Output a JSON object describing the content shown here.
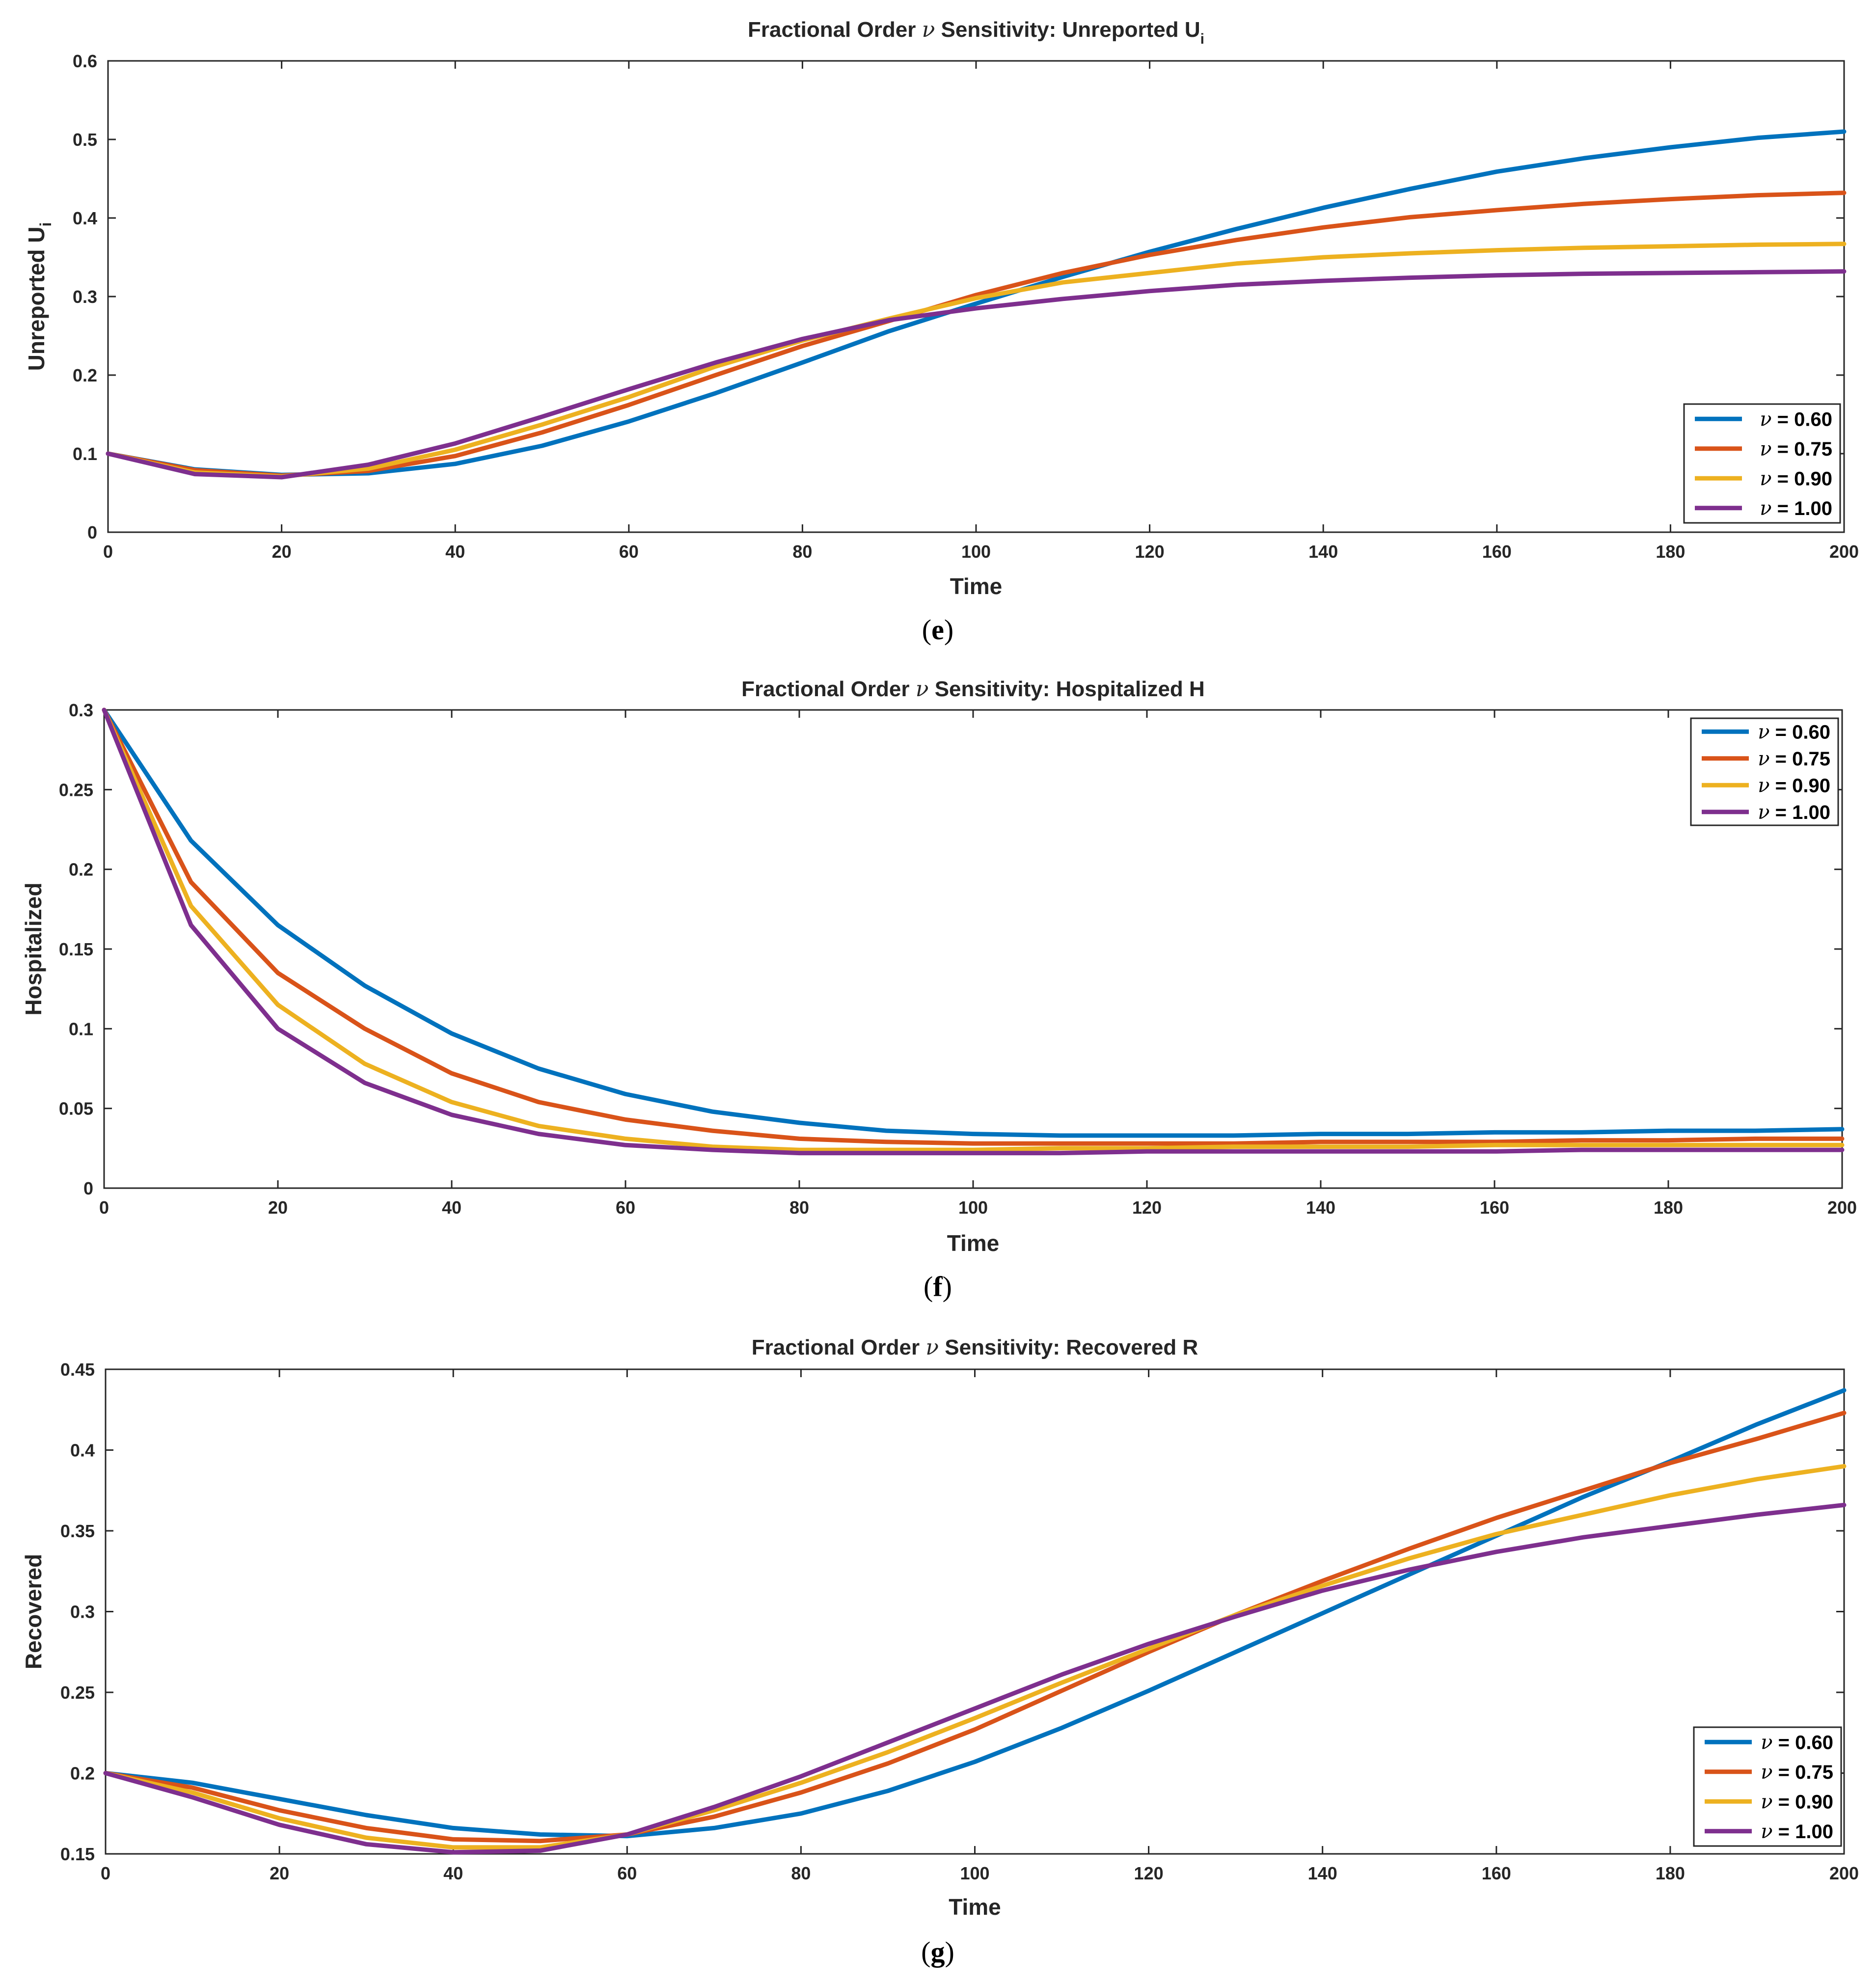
{
  "figure": {
    "legend_symbol": "ν",
    "legend_separator": " = "
  },
  "colors": {
    "series": [
      "#0072BD",
      "#D95319",
      "#EDB120",
      "#7E2F8E"
    ],
    "axes": "#262626",
    "background": "#ffffff"
  },
  "chart_data": [
    {
      "id": "e",
      "caption": {
        "open": "(",
        "letter": "e",
        "close": ")"
      },
      "type": "line",
      "title": {
        "main": "Fractional Order ",
        "symbol": "ν",
        "rest": " Sensitivity: Unreported U",
        "subscript": "i"
      },
      "xlabel": "Time",
      "ylabel": {
        "main": "Unreported U",
        "subscript": "i"
      },
      "xlim": [
        0,
        200
      ],
      "ylim": [
        0,
        0.6
      ],
      "xticks": [
        0,
        20,
        40,
        60,
        80,
        100,
        120,
        140,
        160,
        180,
        200
      ],
      "yticks": [
        0,
        0.1,
        0.2,
        0.3,
        0.4,
        0.5,
        0.6
      ],
      "ytick_labels": [
        "0",
        "0.1",
        "0.2",
        "0.3",
        "0.4",
        "0.5",
        "0.6"
      ],
      "grid": false,
      "legend_location": "bottom-right",
      "x": [
        0,
        10,
        20,
        30,
        40,
        50,
        60,
        70,
        80,
        90,
        100,
        110,
        120,
        130,
        140,
        150,
        160,
        170,
        180,
        190,
        200
      ],
      "series": [
        {
          "name": "0.60",
          "values": [
            0.1,
            0.08,
            0.073,
            0.075,
            0.087,
            0.11,
            0.141,
            0.177,
            0.216,
            0.256,
            0.291,
            0.325,
            0.357,
            0.386,
            0.413,
            0.437,
            0.459,
            0.476,
            0.49,
            0.502,
            0.51
          ]
        },
        {
          "name": "0.75",
          "values": [
            0.1,
            0.079,
            0.072,
            0.078,
            0.097,
            0.127,
            0.162,
            0.2,
            0.237,
            0.269,
            0.302,
            0.33,
            0.353,
            0.372,
            0.388,
            0.401,
            0.41,
            0.418,
            0.424,
            0.429,
            0.432
          ]
        },
        {
          "name": "0.90",
          "values": [
            0.1,
            0.076,
            0.071,
            0.081,
            0.105,
            0.137,
            0.172,
            0.211,
            0.244,
            0.272,
            0.298,
            0.318,
            0.33,
            0.342,
            0.35,
            0.355,
            0.359,
            0.362,
            0.364,
            0.366,
            0.367
          ]
        },
        {
          "name": "1.00",
          "values": [
            0.1,
            0.074,
            0.07,
            0.086,
            0.113,
            0.147,
            0.182,
            0.216,
            0.246,
            0.27,
            0.285,
            0.297,
            0.307,
            0.315,
            0.32,
            0.324,
            0.327,
            0.329,
            0.33,
            0.331,
            0.332
          ]
        }
      ]
    },
    {
      "id": "f",
      "caption": {
        "open": "(",
        "letter": "f",
        "close": ")"
      },
      "type": "line",
      "title": {
        "main": "Fractional Order ",
        "symbol": "ν",
        "rest": " Sensitivity: Hospitalized H",
        "subscript": ""
      },
      "xlabel": "Time",
      "ylabel": {
        "main": "Hospitalized",
        "subscript": ""
      },
      "xlim": [
        0,
        200
      ],
      "ylim": [
        0,
        0.3
      ],
      "xticks": [
        0,
        20,
        40,
        60,
        80,
        100,
        120,
        140,
        160,
        180,
        200
      ],
      "yticks": [
        0,
        0.05,
        0.1,
        0.15,
        0.2,
        0.25,
        0.3
      ],
      "ytick_labels": [
        "0",
        "0.05",
        "0.1",
        "0.15",
        "0.2",
        "0.25",
        "0.3"
      ],
      "grid": false,
      "legend_location": "top-right",
      "x": [
        0,
        10,
        20,
        30,
        40,
        50,
        60,
        70,
        80,
        90,
        100,
        110,
        120,
        130,
        140,
        150,
        160,
        170,
        180,
        190,
        200
      ],
      "series": [
        {
          "name": "0.60",
          "values": [
            0.3,
            0.218,
            0.165,
            0.127,
            0.097,
            0.075,
            0.059,
            0.048,
            0.041,
            0.036,
            0.034,
            0.033,
            0.033,
            0.033,
            0.034,
            0.034,
            0.035,
            0.035,
            0.036,
            0.036,
            0.037
          ]
        },
        {
          "name": "0.75",
          "values": [
            0.3,
            0.192,
            0.135,
            0.1,
            0.072,
            0.054,
            0.043,
            0.036,
            0.031,
            0.029,
            0.028,
            0.028,
            0.028,
            0.028,
            0.029,
            0.029,
            0.029,
            0.03,
            0.03,
            0.031,
            0.031
          ]
        },
        {
          "name": "0.90",
          "values": [
            0.3,
            0.177,
            0.115,
            0.078,
            0.054,
            0.039,
            0.031,
            0.026,
            0.024,
            0.024,
            0.024,
            0.025,
            0.025,
            0.026,
            0.026,
            0.026,
            0.027,
            0.027,
            0.027,
            0.027,
            0.027
          ]
        },
        {
          "name": "1.00",
          "values": [
            0.3,
            0.165,
            0.1,
            0.066,
            0.046,
            0.034,
            0.027,
            0.024,
            0.022,
            0.022,
            0.022,
            0.022,
            0.023,
            0.023,
            0.023,
            0.023,
            0.023,
            0.024,
            0.024,
            0.024,
            0.024
          ]
        }
      ]
    },
    {
      "id": "g",
      "caption": {
        "open": "(",
        "letter": "g",
        "close": ")"
      },
      "type": "line",
      "title": {
        "main": "Fractional Order ",
        "symbol": "ν",
        "rest": " Sensitivity: Recovered R",
        "subscript": ""
      },
      "xlabel": "Time",
      "ylabel": {
        "main": "Recovered",
        "subscript": ""
      },
      "xlim": [
        0,
        200
      ],
      "ylim": [
        0.15,
        0.45
      ],
      "xticks": [
        0,
        20,
        40,
        60,
        80,
        100,
        120,
        140,
        160,
        180,
        200
      ],
      "yticks": [
        0.15,
        0.2,
        0.25,
        0.3,
        0.35,
        0.4,
        0.45
      ],
      "ytick_labels": [
        "0.15",
        "0.2",
        "0.25",
        "0.3",
        "0.35",
        "0.4",
        "0.45"
      ],
      "grid": false,
      "legend_location": "bottom-right",
      "x": [
        0,
        10,
        20,
        30,
        40,
        50,
        60,
        70,
        80,
        90,
        100,
        110,
        120,
        130,
        140,
        150,
        160,
        170,
        180,
        190,
        200
      ],
      "series": [
        {
          "name": "0.60",
          "values": [
            0.2,
            0.194,
            0.184,
            0.174,
            0.166,
            0.162,
            0.161,
            0.166,
            0.175,
            0.189,
            0.207,
            0.228,
            0.251,
            0.275,
            0.299,
            0.323,
            0.347,
            0.371,
            0.393,
            0.416,
            0.437
          ]
        },
        {
          "name": "0.75",
          "values": [
            0.2,
            0.191,
            0.177,
            0.166,
            0.159,
            0.158,
            0.162,
            0.173,
            0.188,
            0.206,
            0.227,
            0.251,
            0.275,
            0.298,
            0.319,
            0.339,
            0.358,
            0.375,
            0.392,
            0.407,
            0.423
          ]
        },
        {
          "name": "0.90",
          "values": [
            0.2,
            0.188,
            0.172,
            0.16,
            0.154,
            0.154,
            0.162,
            0.177,
            0.194,
            0.213,
            0.234,
            0.256,
            0.277,
            0.298,
            0.316,
            0.333,
            0.348,
            0.36,
            0.372,
            0.382,
            0.39
          ]
        },
        {
          "name": "1.00",
          "values": [
            0.2,
            0.185,
            0.168,
            0.156,
            0.151,
            0.152,
            0.162,
            0.179,
            0.198,
            0.219,
            0.24,
            0.261,
            0.28,
            0.297,
            0.313,
            0.326,
            0.337,
            0.346,
            0.353,
            0.36,
            0.366
          ]
        }
      ]
    }
  ]
}
